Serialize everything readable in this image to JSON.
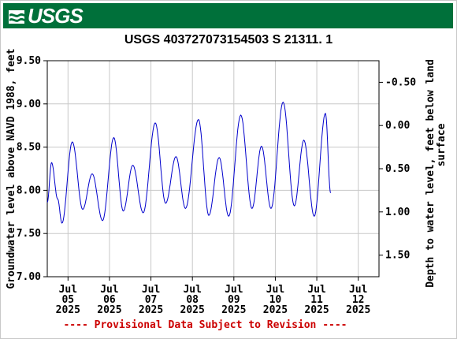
{
  "header": {
    "agency_logo_text": "USGS",
    "brand_color": "#00703a"
  },
  "chart_data": {
    "type": "line",
    "title": "USGS 403727073154503 S 21311. 1",
    "ylabel": "Groundwater level above NAVD 1988, feet",
    "ylabel_right": "Depth to water level, feet below land surface",
    "ylim": [
      7.0,
      9.5
    ],
    "yticks": [
      "9.50",
      "9.00",
      "8.50",
      "8.00",
      "7.50",
      "7.00"
    ],
    "ylim_right": [
      1.75,
      -0.75
    ],
    "yticks_right": [
      "-0.50",
      "0.00",
      "0.50",
      "1.00",
      "1.50"
    ],
    "xlim": [
      "2025-07-04T12:00",
      "2025-07-12T12:00"
    ],
    "xticks": [
      {
        "date": "2025-07-05",
        "month": "Jul",
        "day": "05",
        "year": "2025"
      },
      {
        "date": "2025-07-06",
        "month": "Jul",
        "day": "06",
        "year": "2025"
      },
      {
        "date": "2025-07-07",
        "month": "Jul",
        "day": "07",
        "year": "2025"
      },
      {
        "date": "2025-07-08",
        "month": "Jul",
        "day": "08",
        "year": "2025"
      },
      {
        "date": "2025-07-09",
        "month": "Jul",
        "day": "09",
        "year": "2025"
      },
      {
        "date": "2025-07-10",
        "month": "Jul",
        "day": "10",
        "year": "2025"
      },
      {
        "date": "2025-07-11",
        "month": "Jul",
        "day": "11",
        "year": "2025"
      },
      {
        "date": "2025-07-12",
        "month": "Jul",
        "day": "12",
        "year": "2025"
      }
    ],
    "grid": true,
    "line_color": "#0000cc",
    "series": [
      {
        "points": [
          [
            "2025-07-04T12:00",
            7.86
          ],
          [
            "2025-07-04T14:30",
            8.32
          ],
          [
            "2025-07-04T18:00",
            7.9
          ],
          [
            "2025-07-04T20:30",
            7.62
          ],
          [
            "2025-07-05T02:30",
            8.56
          ],
          [
            "2025-07-05T08:30",
            7.78
          ],
          [
            "2025-07-05T14:00",
            8.19
          ],
          [
            "2025-07-05T20:00",
            7.65
          ],
          [
            "2025-07-06T02:30",
            8.61
          ],
          [
            "2025-07-06T08:00",
            7.76
          ],
          [
            "2025-07-06T13:30",
            8.29
          ],
          [
            "2025-07-06T19:30",
            7.74
          ],
          [
            "2025-07-07T02:30",
            8.78
          ],
          [
            "2025-07-07T08:30",
            7.85
          ],
          [
            "2025-07-07T14:30",
            8.39
          ],
          [
            "2025-07-07T20:00",
            7.79
          ],
          [
            "2025-07-08T03:30",
            8.82
          ],
          [
            "2025-07-08T09:30",
            7.71
          ],
          [
            "2025-07-08T15:30",
            8.38
          ],
          [
            "2025-07-08T21:00",
            7.7
          ],
          [
            "2025-07-09T04:00",
            8.87
          ],
          [
            "2025-07-09T10:30",
            7.79
          ],
          [
            "2025-07-09T16:00",
            8.51
          ],
          [
            "2025-07-09T21:30",
            7.79
          ],
          [
            "2025-07-10T04:30",
            9.02
          ],
          [
            "2025-07-10T11:00",
            7.82
          ],
          [
            "2025-07-10T16:30",
            8.58
          ],
          [
            "2025-07-10T22:30",
            7.7
          ],
          [
            "2025-07-11T05:00",
            8.89
          ],
          [
            "2025-07-11T08:00",
            7.97
          ]
        ]
      }
    ],
    "footnote": "---- Provisional Data Subject to Revision ----"
  }
}
